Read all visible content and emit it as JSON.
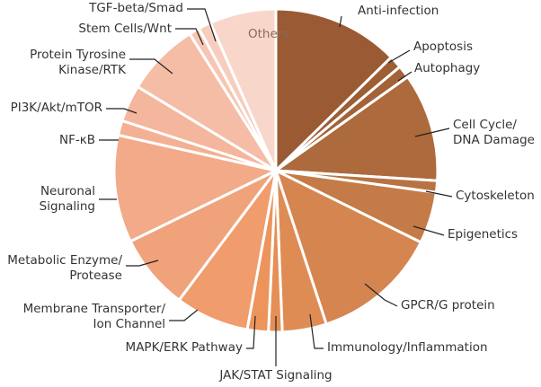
{
  "chart_data": {
    "type": "pie",
    "title": "",
    "legend": "none",
    "slices": [
      {
        "label": "Anti-infection",
        "value": 12.0,
        "color": "#9a5a33"
      },
      {
        "label": "Apoptosis",
        "value": 1.2,
        "color": "#9d5d35"
      },
      {
        "label": "Autophagy",
        "value": 1.2,
        "color": "#a36238"
      },
      {
        "label": "Cell Cycle/\nDNA Damage",
        "value": 10.3,
        "color": "#ad6a3c"
      },
      {
        "label": "Cytoskeleton",
        "value": 1.1,
        "color": "#b77442"
      },
      {
        "label": "Epigenetics",
        "value": 4.9,
        "color": "#c47b47"
      },
      {
        "label": "GPCR/G protein",
        "value": 12.0,
        "color": "#d5854f"
      },
      {
        "label": "Immunology/Inflammation",
        "value": 4.2,
        "color": "#df8c54"
      },
      {
        "label": "JAK/STAT Signaling",
        "value": 1.3,
        "color": "#e58f56"
      },
      {
        "label": "MAPK/ERK Pathway",
        "value": 2.0,
        "color": "#ec945b"
      },
      {
        "label": "Membrane Transporter/\nIon Channel",
        "value": 7.0,
        "color": "#f09c6c"
      },
      {
        "label": "Metabolic Enzyme/\nProtease",
        "value": 7.2,
        "color": "#f0a37a"
      },
      {
        "label": "Neuronal\nSignaling",
        "value": 10.2,
        "color": "#f3aa88"
      },
      {
        "label": "NF-κB",
        "value": 1.4,
        "color": "#f3b093"
      },
      {
        "label": "PI3K/Akt/mTOR",
        "value": 3.5,
        "color": "#f4b69c"
      },
      {
        "label": "Protein Tyrosine\nKinase/RTK",
        "value": 7.0,
        "color": "#f5bda6"
      },
      {
        "label": "Stem Cells/Wnt",
        "value": 1.0,
        "color": "#f6c6b3"
      },
      {
        "label": "TGF-beta/Smad",
        "value": 1.2,
        "color": "#f7cdbd"
      },
      {
        "label": "Others",
        "value": 6.3,
        "color": "#f8d6ca"
      }
    ]
  }
}
